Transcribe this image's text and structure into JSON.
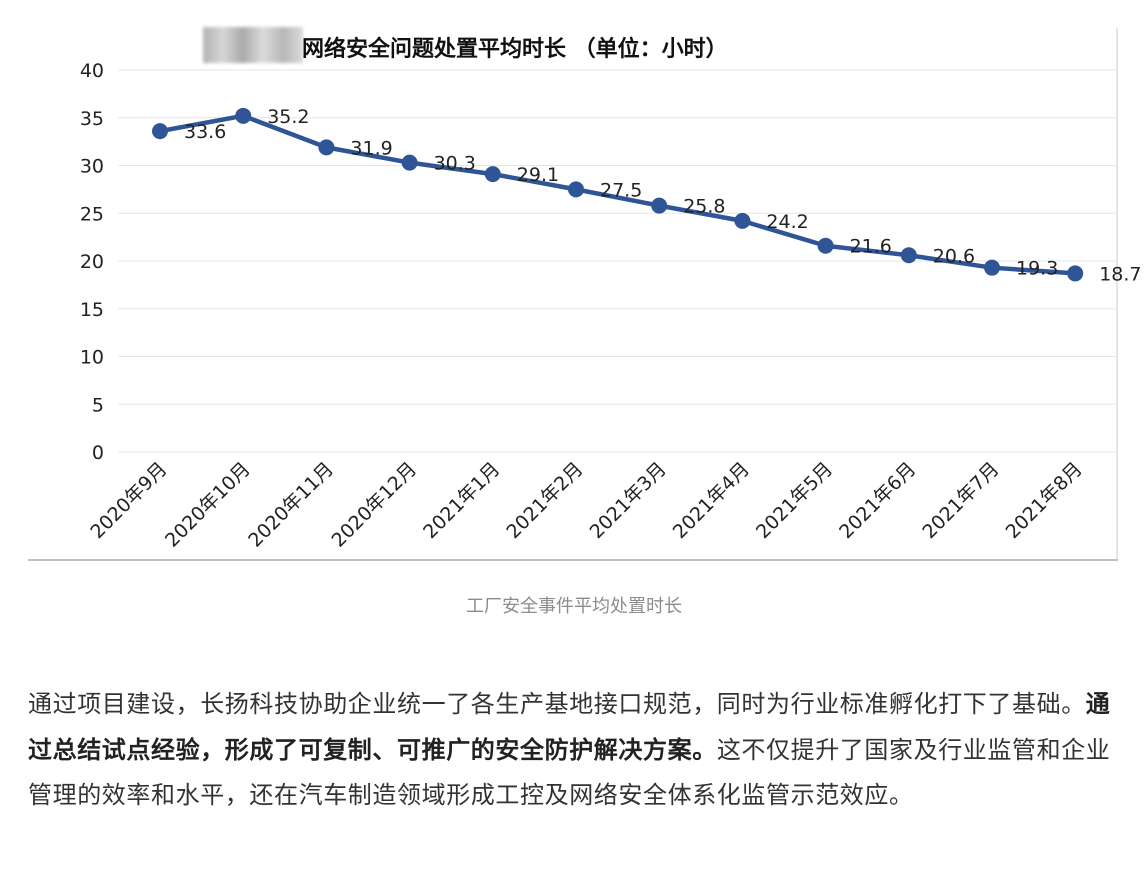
{
  "chart_data": {
    "type": "line",
    "title": "网络安全问题处置平均时长 （单位：小时）",
    "categories": [
      "2020年9月",
      "2020年10月",
      "2020年11月",
      "2020年12月",
      "2021年1月",
      "2021年2月",
      "2021年3月",
      "2021年4月",
      "2021年5月",
      "2021年6月",
      "2021年7月",
      "2021年8月"
    ],
    "series": [
      {
        "values": [
          33.6,
          35.2,
          31.9,
          30.3,
          29.1,
          27.5,
          25.8,
          24.2,
          21.6,
          20.6,
          19.3,
          18.7
        ]
      }
    ],
    "ylim": [
      0,
      40
    ],
    "yticks": [
      0,
      5,
      10,
      15,
      20,
      25,
      30,
      35,
      40
    ],
    "grid": true,
    "legend": "none",
    "line_color": "#2f5597"
  },
  "caption": "工厂安全事件平均处置时长",
  "article": {
    "p1": "通过项目建设，长扬科技协助企业统一了各生产基地接口规范，同时为行业标准孵化打下了基础。",
    "p2_bold": "通过总结试点经验，形成了可复制、可推广的安全防护解决方案。",
    "p3": "这不仅提升了国家及行业监管和企业管理的效率和水平，还在汽车制造领域形成工控及网络安全体系化监管示范效应。"
  }
}
